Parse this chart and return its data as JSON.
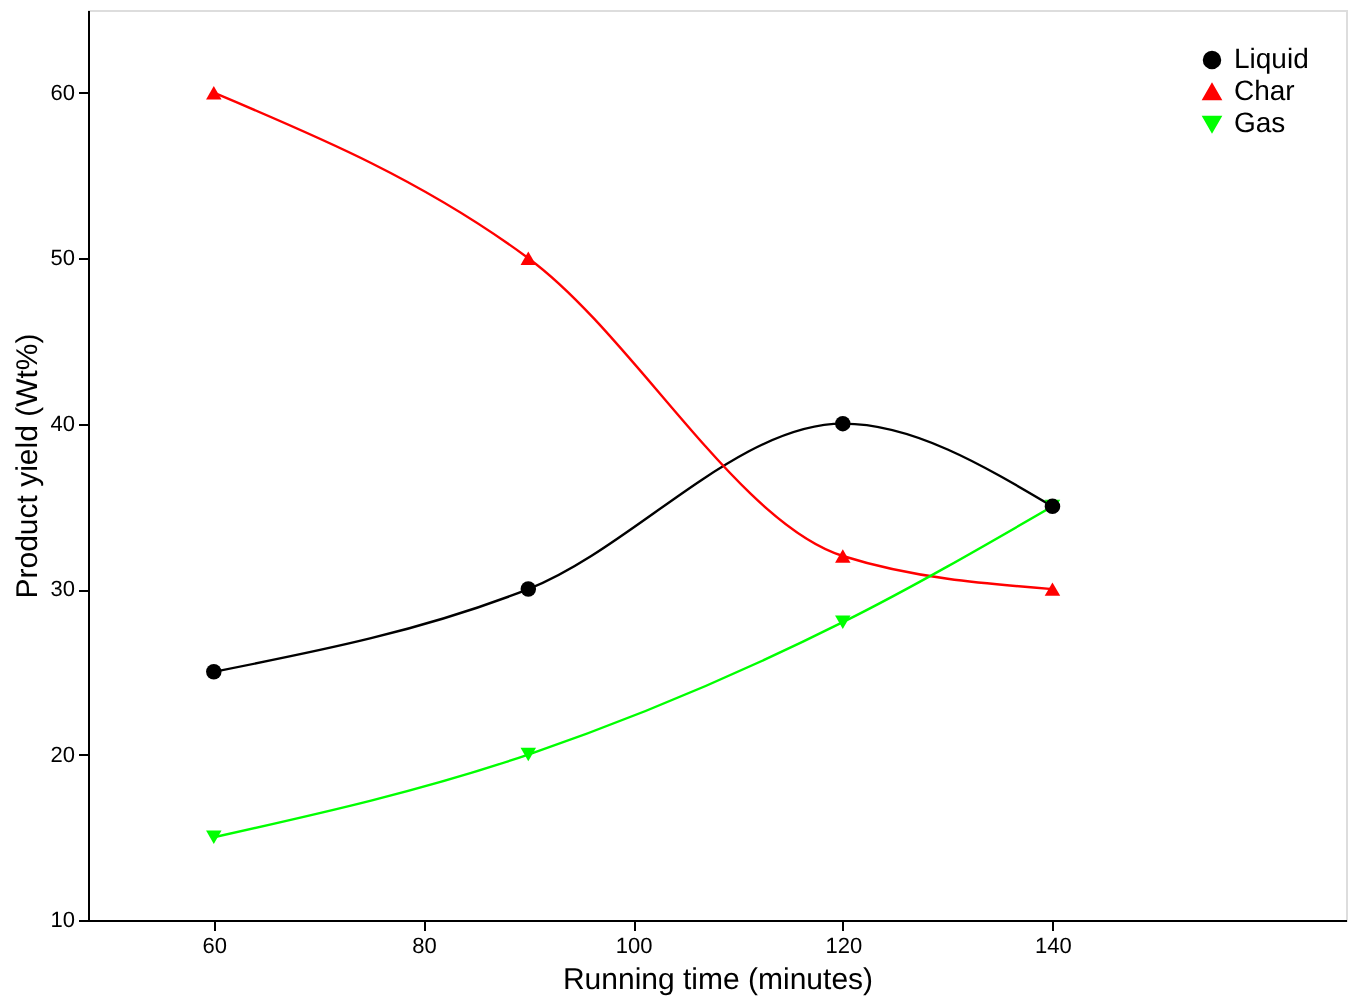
{
  "chart_data": {
    "type": "line",
    "xlabel": "Running time (minutes)",
    "ylabel": "Product yield (Wt%)",
    "x": [
      60,
      90,
      120,
      140
    ],
    "series": [
      {
        "name": "Liquid",
        "color": "#000000",
        "marker": "circle",
        "values": [
          25,
          30,
          40,
          35
        ]
      },
      {
        "name": "Char",
        "color": "#ff0000",
        "marker": "triangle",
        "values": [
          60,
          50,
          32,
          30
        ]
      },
      {
        "name": "Gas",
        "color": "#00ff00",
        "marker": "triangle-down",
        "values": [
          15,
          20,
          28,
          35
        ]
      }
    ],
    "xlim": [
      48,
      168
    ],
    "xticks": [
      60,
      80,
      100,
      120,
      140
    ],
    "ylim": [
      10,
      65
    ],
    "yticks": [
      10,
      20,
      30,
      40,
      50,
      60
    ],
    "grid": false,
    "legend": "top right",
    "line_style": "solid"
  }
}
